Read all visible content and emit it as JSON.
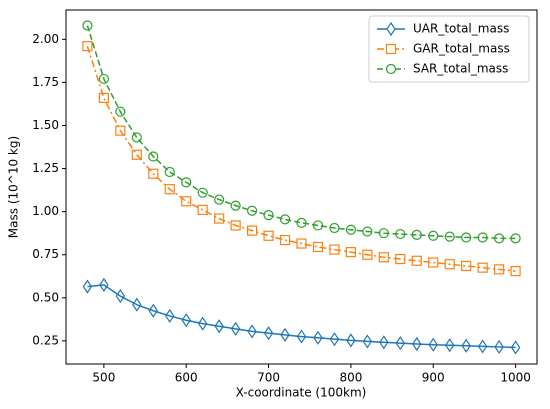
{
  "chart_data": {
    "type": "line",
    "xlabel": "X-coordinate (100km)",
    "ylabel": "Mass (10^10 kg)",
    "x": [
      480,
      500,
      520,
      540,
      560,
      580,
      600,
      620,
      640,
      660,
      680,
      700,
      720,
      740,
      760,
      780,
      800,
      820,
      840,
      860,
      880,
      900,
      920,
      940,
      960,
      980,
      1000
    ],
    "series": [
      {
        "name": "UAR_total_mass",
        "color": "#1f77b4",
        "marker": "diamond",
        "linestyle": "solid",
        "values": [
          0.565,
          0.575,
          0.51,
          0.46,
          0.425,
          0.395,
          0.37,
          0.35,
          0.335,
          0.32,
          0.305,
          0.295,
          0.285,
          0.275,
          0.268,
          0.26,
          0.253,
          0.247,
          0.242,
          0.237,
          0.232,
          0.228,
          0.225,
          0.222,
          0.218,
          0.215,
          0.212
        ]
      },
      {
        "name": "GAR_total_mass",
        "color": "#ff7f0e",
        "marker": "square",
        "linestyle": "dashdot",
        "values": [
          1.96,
          1.66,
          1.47,
          1.33,
          1.22,
          1.13,
          1.06,
          1.01,
          0.96,
          0.92,
          0.89,
          0.86,
          0.835,
          0.815,
          0.795,
          0.78,
          0.765,
          0.75,
          0.735,
          0.725,
          0.715,
          0.705,
          0.695,
          0.685,
          0.675,
          0.665,
          0.655
        ]
      },
      {
        "name": "SAR_total_mass",
        "color": "#2ca02c",
        "marker": "circle",
        "linestyle": "dashed",
        "values": [
          2.08,
          1.77,
          1.58,
          1.43,
          1.32,
          1.23,
          1.17,
          1.11,
          1.07,
          1.035,
          1.005,
          0.98,
          0.955,
          0.935,
          0.92,
          0.905,
          0.895,
          0.885,
          0.875,
          0.87,
          0.865,
          0.86,
          0.855,
          0.85,
          0.85,
          0.845,
          0.845
        ]
      }
    ],
    "xlim": [
      454,
      1026
    ],
    "xticks": [
      500,
      600,
      700,
      800,
      900,
      1000
    ],
    "ylim": [
      0.116,
      2.17
    ],
    "yticks": [
      {
        "value": 0.25,
        "label": "0.25"
      },
      {
        "value": 0.5,
        "label": "0.50"
      },
      {
        "value": 0.75,
        "label": "0.75"
      },
      {
        "value": 1.0,
        "label": "1.00"
      },
      {
        "value": 1.25,
        "label": "1.25"
      },
      {
        "value": 1.5,
        "label": "1.50"
      },
      {
        "value": 1.75,
        "label": "1.75"
      },
      {
        "value": 2.0,
        "label": "2.00"
      }
    ],
    "legend": "upper right"
  }
}
